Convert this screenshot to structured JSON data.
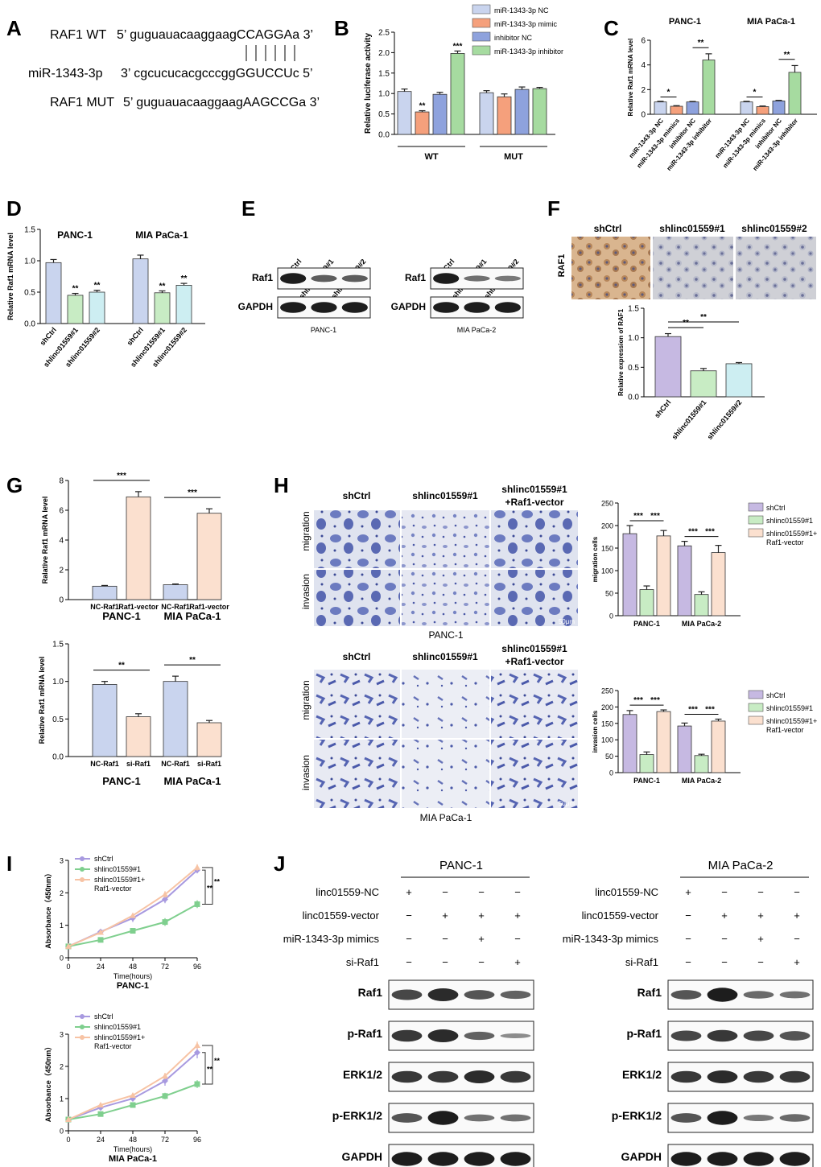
{
  "panel_letters": [
    "A",
    "B",
    "C",
    "D",
    "E",
    "F",
    "G",
    "H",
    "I",
    "J"
  ],
  "sequences": {
    "raf1_wt_label": "RAF1  WT",
    "raf1_wt": "5’ guguauacaaggaagCCAGGAa 3’",
    "mir_label": "miR-1343-3p",
    "mir": "3’ cgcucucacgcccggGGUCCUc 5’",
    "raf1_mut_label": "RAF1  MUT",
    "raf1_mut": "5’ guguauacaaggaagAAGCCGa 3’"
  },
  "blots": {
    "E": {
      "groups": [
        {
          "cell": "PANC-1",
          "lanes": [
            "shCtrl",
            "shlinc01559#1",
            "shlinc01559#2"
          ],
          "rows": [
            "Raf1",
            "GAPDH"
          ]
        },
        {
          "cell": "MIA PaCa-2",
          "lanes": [
            "shCtrl",
            "shlinc01559#1",
            "shlinc01559#2"
          ],
          "rows": [
            "Raf1",
            "GAPDH"
          ]
        }
      ]
    },
    "J": {
      "groups": [
        {
          "cell": "PANC-1"
        },
        {
          "cell": "MIA PaCa-2"
        }
      ],
      "conditions": [
        {
          "label": "linc01559-NC",
          "signs": [
            "+",
            "−",
            "−",
            "−"
          ]
        },
        {
          "label": "linc01559-vector",
          "signs": [
            "−",
            "+",
            "+",
            "+"
          ]
        },
        {
          "label": "miR-1343-3p mimics",
          "signs": [
            "−",
            "−",
            "+",
            "−"
          ]
        },
        {
          "label": "si-Raf1",
          "signs": [
            "−",
            "−",
            "−",
            "+"
          ]
        }
      ],
      "rows": [
        "Raf1",
        "p-Raf1",
        "ERK1/2",
        "p-ERK1/2",
        "GAPDH"
      ]
    }
  },
  "ihc": {
    "panel_labels": [
      "shCtrl",
      "shlinc01559#1",
      "shlinc01559#2"
    ],
    "row_label": "RAF1"
  },
  "micrographs": [
    {
      "caption": "PANC-1",
      "columns": [
        "shCtrl",
        "shlinc01559#1",
        "shlinc01559#1",
        "+Raf1-vector"
      ],
      "rows": [
        "migration",
        "invasion"
      ],
      "scale": "50μm"
    },
    {
      "caption": "MIA PaCa-1",
      "columns": [
        "shCtrl",
        "shlinc01559#1",
        "shlinc01559#1",
        "+Raf1-vector"
      ],
      "rows": [
        "migration",
        "invasion"
      ],
      "scale": "50μm"
    }
  ],
  "chart_data": [
    {
      "id": "B",
      "type": "bar",
      "ylabel": "Relative luciferase activity",
      "ylim": [
        0,
        2.5
      ],
      "yticks": [
        "0.0",
        "0.5",
        "1.0",
        "1.5",
        "2.0",
        "2.5"
      ],
      "groups": [
        "WT",
        "MUT"
      ],
      "legend": [
        "miR-1343-3p NC",
        "miR-1343-3p mimic",
        "inhibitor NC",
        "miR-1343-3p inhibitor"
      ],
      "colors": [
        "#c9d4ee",
        "#f5a07c",
        "#8ea2dd",
        "#a6dba0"
      ],
      "values": [
        [
          1.05,
          0.55,
          0.98,
          1.98
        ],
        [
          1.02,
          0.92,
          1.1,
          1.12
        ]
      ],
      "errors": [
        [
          0.06,
          0.03,
          0.05,
          0.06
        ],
        [
          0.05,
          0.07,
          0.06,
          0.03
        ]
      ],
      "sig": [
        [
          "",
          "**",
          "",
          "***"
        ],
        [
          "",
          "",
          "",
          ""
        ]
      ]
    },
    {
      "id": "C",
      "type": "bar",
      "ylabel": "Relative Raf1 mRNA level",
      "ylim": [
        0,
        6
      ],
      "yticks": [
        "0",
        "2",
        "4",
        "6"
      ],
      "titles": [
        "PANC-1",
        "MIA PaCa-1"
      ],
      "categories": [
        "miR-1343-3p NC",
        "miR-1343-3p mimics",
        "inhibitor NC",
        "miR-1343-3p inhibitor"
      ],
      "colors": [
        "#c9d4ee",
        "#f5a07c",
        "#8ea2dd",
        "#a6dba0"
      ],
      "values": [
        [
          1.0,
          0.65,
          1.0,
          4.4
        ],
        [
          1.0,
          0.62,
          1.08,
          3.4
        ]
      ],
      "errors": [
        [
          0.05,
          0.05,
          0.04,
          0.5
        ],
        [
          0.05,
          0.05,
          0.05,
          0.55
        ]
      ],
      "brackets": [
        "*",
        "**",
        "*",
        "**"
      ]
    },
    {
      "id": "D",
      "type": "bar",
      "ylabel": "Relative Raf1 mRNA level",
      "ylim": [
        0,
        1.5
      ],
      "yticks": [
        "0.0",
        "0.5",
        "1.0",
        "1.5"
      ],
      "titles": [
        "PANC-1",
        "MIA PaCa-1"
      ],
      "categories": [
        "shCtrl",
        "shlinc01559#1",
        "shlinc01559#2"
      ],
      "colors": [
        "#c9d4ee",
        "#c8ecc4",
        "#cdeef2"
      ],
      "values": [
        [
          0.97,
          0.45,
          0.5
        ],
        [
          1.03,
          0.49,
          0.61
        ]
      ],
      "errors": [
        [
          0.05,
          0.03,
          0.03
        ],
        [
          0.06,
          0.03,
          0.03
        ]
      ],
      "sig": [
        [
          "",
          "**",
          "**"
        ],
        [
          "",
          "**",
          "**"
        ]
      ]
    },
    {
      "id": "F",
      "type": "bar",
      "ylabel": "Relative expression of RAF1",
      "ylim": [
        0,
        1.5
      ],
      "yticks": [
        "0.0",
        "0.5",
        "1.0",
        "1.5"
      ],
      "categories": [
        "shCtrl",
        "shlinc01559#1",
        "shlinc01559#2"
      ],
      "colors": [
        "#c6b9e2",
        "#c8ecc4",
        "#cdeef2"
      ],
      "values": [
        1.02,
        0.44,
        0.56
      ],
      "errors": [
        0.05,
        0.04,
        0.02
      ],
      "brackets": [
        "**",
        "**"
      ]
    },
    {
      "id": "G1",
      "type": "bar",
      "ylabel": "Ralative Raf1 mRNA level",
      "ylim": [
        0,
        8
      ],
      "yticks": [
        "0",
        "2",
        "4",
        "6",
        "8"
      ],
      "groups": [
        "PANC-1",
        "MIA PaCa-1"
      ],
      "categories": [
        "NC-Raf1",
        "Raf1-vector"
      ],
      "colors": [
        "#c9d4ee",
        "#fbe0cf"
      ],
      "values": [
        [
          0.9,
          6.9
        ],
        [
          1.0,
          5.8
        ]
      ],
      "errors": [
        [
          0.05,
          0.35
        ],
        [
          0.05,
          0.3
        ]
      ],
      "brackets": [
        "***",
        "***"
      ]
    },
    {
      "id": "G2",
      "type": "bar",
      "ylabel": "Relative Raf1 mRNA level",
      "ylim": [
        0,
        1.5
      ],
      "yticks": [
        "0.0",
        "0.5",
        "1.0",
        "1.5"
      ],
      "groups": [
        "PANC-1",
        "MIA PaCa-1"
      ],
      "categories": [
        "NC-Raf1",
        "si-Raf1"
      ],
      "colors": [
        "#c9d4ee",
        "#fbe0cf"
      ],
      "values": [
        [
          0.96,
          0.53
        ],
        [
          1.0,
          0.45
        ]
      ],
      "errors": [
        [
          0.04,
          0.04
        ],
        [
          0.07,
          0.03
        ]
      ],
      "brackets": [
        "**",
        "**"
      ]
    },
    {
      "id": "H1",
      "type": "bar",
      "ylabel": "migration cells",
      "ylim": [
        0,
        250
      ],
      "yticks": [
        "0",
        "50",
        "100",
        "150",
        "200",
        "250"
      ],
      "groups": [
        "PANC-1",
        "MIA PaCa-2"
      ],
      "legend": [
        "shCtrl",
        "shlinc01559#1",
        "shlinc01559#1+ Raf1-vector"
      ],
      "colors": [
        "#c6b9e2",
        "#c8ecc4",
        "#fbe0cf"
      ],
      "values": [
        [
          182,
          58,
          177
        ],
        [
          155,
          47,
          140
        ]
      ],
      "errors": [
        [
          18,
          8,
          12
        ],
        [
          10,
          6,
          16
        ]
      ],
      "brackets": [
        "***",
        "***",
        "***",
        "***"
      ]
    },
    {
      "id": "H2",
      "type": "bar",
      "ylabel": "invasion cells",
      "ylim": [
        0,
        250
      ],
      "yticks": [
        "0",
        "50",
        "100",
        "150",
        "200",
        "250"
      ],
      "groups": [
        "PANC-1",
        "MIA PaCa-2"
      ],
      "legend": [
        "shCtrl",
        "shlinc01559#1",
        "shlinc01559#1+ Raf1-vector"
      ],
      "colors": [
        "#c6b9e2",
        "#c8ecc4",
        "#fbe0cf"
      ],
      "values": [
        [
          177,
          55,
          186
        ],
        [
          142,
          52,
          157
        ]
      ],
      "errors": [
        [
          12,
          8,
          5
        ],
        [
          9,
          4,
          6
        ]
      ],
      "brackets": [
        "***",
        "***",
        "***",
        "***"
      ]
    },
    {
      "id": "I1",
      "type": "line",
      "title": "PANC-1",
      "ylabel": "Absorbance（450nm）",
      "xlabel": "Time(hours)",
      "x": [
        0,
        24,
        48,
        72,
        96
      ],
      "xlim": [
        0,
        96
      ],
      "ylim": [
        0,
        3
      ],
      "yticks": [
        "0",
        "1",
        "2",
        "3"
      ],
      "series": [
        {
          "name": "shCtrl",
          "color": "#a89ae0",
          "values": [
            0.35,
            0.8,
            1.22,
            1.8,
            2.7
          ],
          "errors": [
            0.04,
            0.06,
            0.12,
            0.12,
            0.1
          ]
        },
        {
          "name": "shlinc01559#1",
          "color": "#7fcf8e",
          "values": [
            0.35,
            0.55,
            0.83,
            1.1,
            1.65
          ],
          "errors": [
            0.03,
            0.05,
            0.06,
            0.12,
            0.12
          ]
        },
        {
          "name": "shlinc01559#1+ Raf1-vector",
          "color": "#f7c3a4",
          "values": [
            0.35,
            0.78,
            1.3,
            1.95,
            2.78
          ],
          "errors": [
            0.03,
            0.05,
            0.07,
            0.1,
            0.1
          ]
        }
      ],
      "sig": [
        "**",
        "**"
      ]
    },
    {
      "id": "I2",
      "type": "line",
      "title": "MIA PaCa-1",
      "ylabel": "Absorbance（450nm）",
      "xlabel": "Time(hours)",
      "x": [
        0,
        24,
        48,
        72,
        96
      ],
      "xlim": [
        0,
        96
      ],
      "ylim": [
        0,
        3
      ],
      "yticks": [
        "0",
        "1",
        "2",
        "3"
      ],
      "series": [
        {
          "name": "shCtrl",
          "color": "#a89ae0",
          "values": [
            0.35,
            0.72,
            1.0,
            1.55,
            2.43
          ],
          "errors": [
            0.04,
            0.05,
            0.08,
            0.15,
            0.18
          ]
        },
        {
          "name": "shlinc01559#1",
          "color": "#7fcf8e",
          "values": [
            0.35,
            0.52,
            0.8,
            1.08,
            1.45
          ],
          "errors": [
            0.03,
            0.04,
            0.05,
            0.1,
            0.12
          ]
        },
        {
          "name": "shlinc01559#1+ Raf1-vector",
          "color": "#f7c3a4",
          "values": [
            0.35,
            0.8,
            1.1,
            1.7,
            2.65
          ],
          "errors": [
            0.03,
            0.04,
            0.07,
            0.1,
            0.12
          ]
        }
      ],
      "sig": [
        "**",
        "**"
      ]
    }
  ]
}
